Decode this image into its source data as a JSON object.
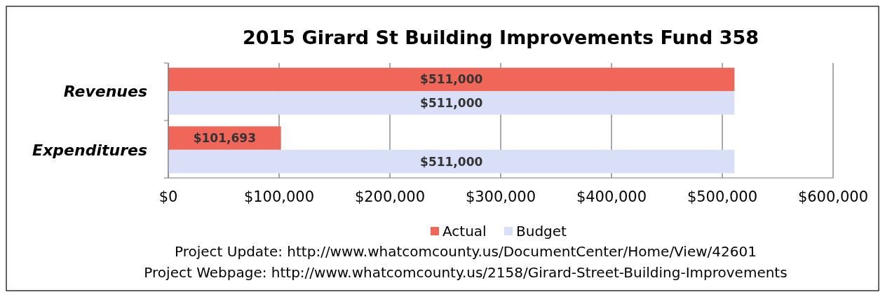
{
  "chart_data": {
    "type": "bar",
    "orientation": "horizontal",
    "title": "2015 Girard St Building Improvements Fund 358",
    "categories": [
      "Revenues",
      "Expenditures"
    ],
    "series": [
      {
        "name": "Actual",
        "color": "#f0675a",
        "values": [
          511000,
          101693
        ],
        "value_labels": [
          "$511,000",
          "$101,693"
        ]
      },
      {
        "name": "Budget",
        "color": "#d9dff7",
        "values": [
          511000,
          511000
        ],
        "value_labels": [
          "$511,000",
          "$511,000"
        ]
      }
    ],
    "xlim": [
      0,
      600000
    ],
    "xticks": [
      {
        "value": 0,
        "label": "$0"
      },
      {
        "value": 100000,
        "label": "$100,000"
      },
      {
        "value": 200000,
        "label": "$200,000"
      },
      {
        "value": 300000,
        "label": "$300,000"
      },
      {
        "value": 400000,
        "label": "$400,000"
      },
      {
        "value": 500000,
        "label": "$500,000"
      },
      {
        "value": 600000,
        "label": "$600,000"
      }
    ],
    "grid": "x",
    "legend": "bottom",
    "annotations": [
      "Project Update: http://www.whatcomcounty.us/DocumentCenter/Home/View/42601",
      "Project Webpage: http://www.whatcomcounty.us/2158/Girard-Street-Building-Improvements"
    ]
  }
}
